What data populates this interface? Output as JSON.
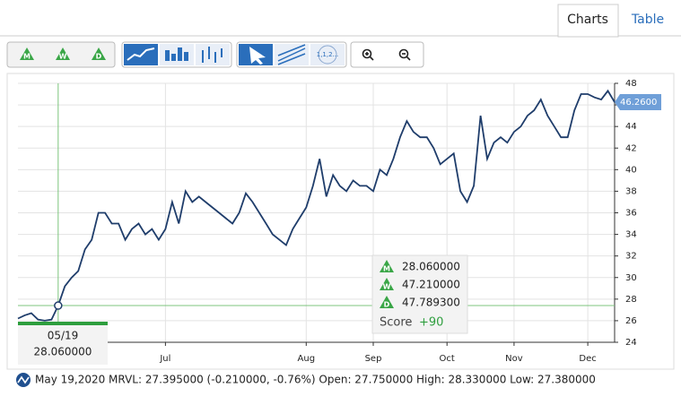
{
  "tabs": [
    "Charts",
    "Table"
  ],
  "toolbar": {
    "period_buttons": [
      "M",
      "W",
      "D"
    ],
    "annotation_label": "1,1,2..."
  },
  "crosshair": {
    "date": "05/19",
    "value": "28.060000"
  },
  "last_price_label": "46.2600",
  "score_panel": {
    "rows": [
      {
        "badge": "M",
        "value": "28.060000"
      },
      {
        "badge": "W",
        "value": "47.210000"
      },
      {
        "badge": "D",
        "value": "47.789300"
      }
    ],
    "score_label": "Score",
    "score_value": "+90"
  },
  "status": "May 19,2020 MRVL: 27.395000 (-0.210000, -0.76%) Open: 27.750000 High: 28.330000 Low: 27.380000",
  "chart_data": {
    "type": "line",
    "color": "#1f3d6b",
    "grid": true,
    "ylim": [
      24,
      48
    ],
    "yticks": [
      24,
      26,
      28,
      30,
      32,
      34,
      36,
      38,
      40,
      42,
      44,
      46,
      48
    ],
    "categories": [
      null,
      null,
      null,
      null,
      null,
      null,
      null,
      null,
      null,
      null,
      null,
      null,
      null,
      null,
      null,
      null,
      null,
      null,
      null,
      null,
      null,
      null,
      "Jul",
      null,
      null,
      null,
      null,
      null,
      null,
      null,
      null,
      null,
      null,
      null,
      null,
      null,
      null,
      null,
      null,
      null,
      null,
      null,
      null,
      "Aug",
      null,
      null,
      null,
      null,
      null,
      null,
      null,
      null,
      null,
      "Sep",
      null,
      null,
      null,
      null,
      null,
      null,
      null,
      null,
      null,
      null,
      "Oct",
      null,
      null,
      null,
      null,
      null,
      null,
      null,
      null,
      null,
      "Nov",
      null,
      null,
      null,
      null,
      null,
      null,
      null,
      null,
      null,
      null,
      "Dec",
      null,
      null,
      null,
      null
    ],
    "values": [
      26.2,
      26.5,
      26.7,
      26.1,
      26.0,
      26.1,
      27.4,
      29.2,
      30.0,
      30.6,
      32.6,
      33.5,
      36.0,
      36.0,
      35.0,
      35.0,
      33.5,
      34.5,
      35.0,
      34.0,
      34.5,
      33.5,
      34.5,
      37.0,
      35.0,
      38.0,
      37.0,
      37.5,
      37.0,
      36.5,
      36.0,
      35.5,
      35.0,
      36.0,
      37.8,
      37.0,
      36.0,
      35.0,
      34.0,
      33.5,
      33.0,
      34.5,
      35.5,
      36.5,
      38.5,
      41.0,
      37.5,
      39.5,
      38.5,
      38.0,
      39.0,
      38.5,
      38.5,
      38.0,
      40.0,
      39.5,
      41.0,
      43.0,
      44.5,
      43.5,
      43.0,
      43.0,
      42.0,
      40.5,
      41.0,
      41.5,
      38.0,
      37.0,
      38.5,
      45.0,
      41.0,
      42.5,
      43.0,
      42.5,
      43.5,
      44.0,
      45.0,
      45.5,
      46.5,
      45.0,
      44.0,
      43.0,
      43.0,
      45.5,
      47.0,
      47.0,
      46.7,
      46.5,
      47.3,
      46.26
    ]
  }
}
